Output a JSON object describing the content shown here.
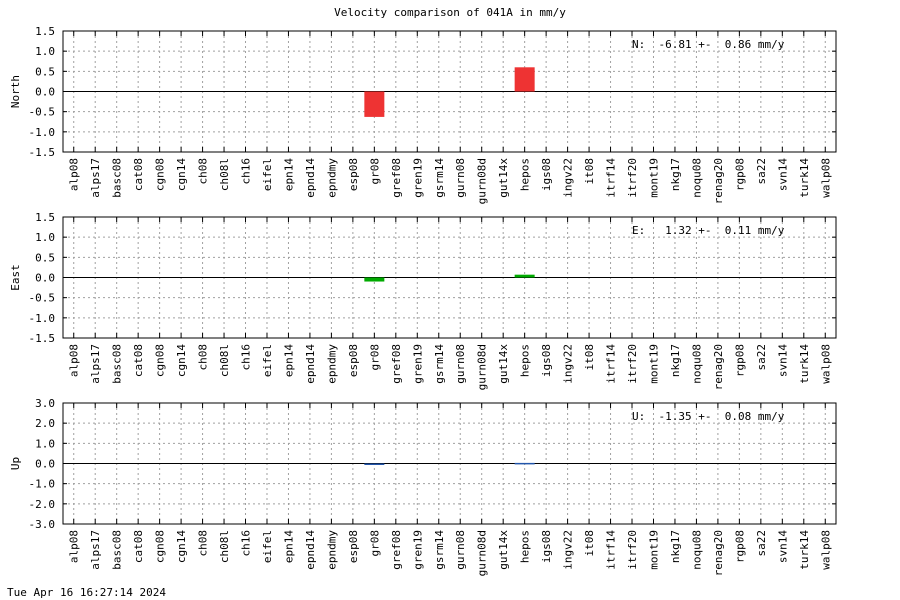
{
  "title": "Velocity comparison of 041A in mm/y",
  "footer": "Tue Apr 16 16:27:14 2024",
  "chart_data": [
    {
      "type": "bar",
      "ylabel": "North",
      "ylim": [
        -1.5,
        1.5
      ],
      "yticks": [
        "1.5",
        "1.0",
        "0.5",
        "0.0",
        "-0.5",
        "-1.0",
        "-1.5"
      ],
      "grid": true,
      "color": "#ee3333",
      "annotation": "N:  -6.81 +-  0.86 mm/y",
      "categories": [
        "alp08",
        "alps17",
        "basc08",
        "cat08",
        "cgn08",
        "cgn14",
        "ch08",
        "ch08l",
        "ch16",
        "eifel",
        "epn14",
        "epnd14",
        "epndmy",
        "esp08",
        "gr08",
        "gref08",
        "gren19",
        "gsrm14",
        "gurn08",
        "gurn08d",
        "gut14x",
        "hepos",
        "igs08",
        "ingv22",
        "it08",
        "itrf14",
        "itrf20",
        "mont19",
        "nkg17",
        "noqu08",
        "renag20",
        "rgp08",
        "sa22",
        "svn14",
        "turk14",
        "walp08"
      ],
      "values": [
        0,
        0,
        0,
        0,
        0,
        0,
        0,
        0,
        0,
        0,
        0,
        0,
        0,
        0,
        -0.63,
        0,
        0,
        0,
        0,
        0,
        0,
        0.6,
        0,
        0,
        0,
        0,
        0,
        0,
        0,
        0,
        0,
        0,
        0,
        0,
        0,
        0
      ]
    },
    {
      "type": "bar",
      "ylabel": "East",
      "ylim": [
        -1.5,
        1.5
      ],
      "yticks": [
        "1.5",
        "1.0",
        "0.5",
        "0.0",
        "-0.5",
        "-1.0",
        "-1.5"
      ],
      "grid": true,
      "color": "#00aa00",
      "annotation": "E:   1.32 +-  0.11 mm/y",
      "categories": [
        "alp08",
        "alps17",
        "basc08",
        "cat08",
        "cgn08",
        "cgn14",
        "ch08",
        "ch08l",
        "ch16",
        "eifel",
        "epn14",
        "epnd14",
        "epndmy",
        "esp08",
        "gr08",
        "gref08",
        "gren19",
        "gsrm14",
        "gurn08",
        "gurn08d",
        "gut14x",
        "hepos",
        "igs08",
        "ingv22",
        "it08",
        "itrf14",
        "itrf20",
        "mont19",
        "nkg17",
        "noqu08",
        "renag20",
        "rgp08",
        "sa22",
        "svn14",
        "turk14",
        "walp08"
      ],
      "values": [
        0,
        0,
        0,
        0,
        0,
        0,
        0,
        0,
        0,
        0,
        0,
        0,
        0,
        0,
        -0.1,
        0,
        0,
        0,
        0,
        0,
        0,
        0.07,
        0,
        0,
        0,
        0,
        0,
        0,
        0,
        0,
        0,
        0,
        0,
        0,
        0,
        0
      ]
    },
    {
      "type": "bar",
      "ylabel": "Up",
      "ylim": [
        -3.0,
        3.0
      ],
      "yticks": [
        "3.0",
        "2.0",
        "1.0",
        "0.0",
        "-1.0",
        "-2.0",
        "-3.0"
      ],
      "grid": true,
      "color": "#2255aa",
      "annotation": "U:  -1.35 +-  0.08 mm/y",
      "categories": [
        "alp08",
        "alps17",
        "basc08",
        "cat08",
        "cgn08",
        "cgn14",
        "ch08",
        "ch08l",
        "ch16",
        "eifel",
        "epn14",
        "epnd14",
        "epndmy",
        "esp08",
        "gr08",
        "gref08",
        "gren19",
        "gsrm14",
        "gurn08",
        "gurn08d",
        "gut14x",
        "hepos",
        "igs08",
        "ingv22",
        "it08",
        "itrf14",
        "itrf20",
        "mont19",
        "nkg17",
        "noqu08",
        "renag20",
        "rgp08",
        "sa22",
        "svn14",
        "turk14",
        "walp08"
      ],
      "values": [
        0,
        0,
        0,
        0,
        0,
        0,
        0,
        0,
        0,
        0,
        0,
        0,
        0,
        0,
        -0.04,
        0,
        0,
        0,
        0,
        0,
        0,
        0.03,
        0,
        0,
        0,
        0,
        0,
        0,
        0,
        0,
        0,
        0,
        0,
        0,
        0,
        0
      ]
    }
  ]
}
